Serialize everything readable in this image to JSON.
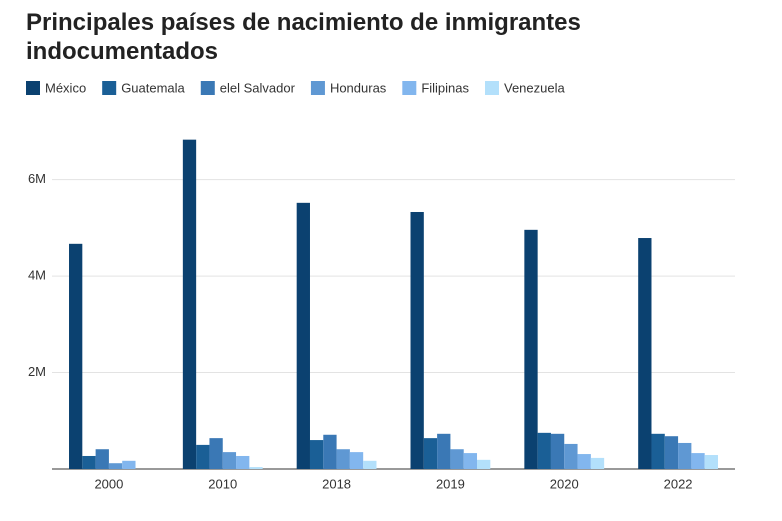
{
  "chart_data": {
    "type": "bar",
    "title": "Principales países de nacimiento de inmigrantes indocumentados",
    "categories": [
      "2000",
      "2010",
      "2018",
      "2019",
      "2020",
      "2022"
    ],
    "series": [
      {
        "name": "México",
        "color": "#0b4170",
        "values": [
          4670000,
          6830000,
          5520000,
          5330000,
          4960000,
          4790000
        ]
      },
      {
        "name": "Guatemala",
        "color": "#1a5f96",
        "values": [
          270000,
          500000,
          600000,
          640000,
          750000,
          730000
        ]
      },
      {
        "name": "elel Salvador",
        "color": "#3a78b5",
        "values": [
          410000,
          640000,
          710000,
          730000,
          730000,
          680000
        ]
      },
      {
        "name": "Honduras",
        "color": "#5f98d3",
        "values": [
          120000,
          350000,
          410000,
          410000,
          520000,
          540000
        ]
      },
      {
        "name": "Filipinas",
        "color": "#82b6ee",
        "values": [
          170000,
          270000,
          350000,
          330000,
          310000,
          330000
        ]
      },
      {
        "name": "Venezuela",
        "color": "#b3e0fb",
        "values": [
          0,
          40000,
          170000,
          190000,
          230000,
          290000
        ]
      }
    ],
    "ylim": [
      0,
      7300000
    ],
    "yticks": [
      {
        "value": 2000000,
        "label": "2M"
      },
      {
        "value": 4000000,
        "label": "4M"
      },
      {
        "value": 6000000,
        "label": "6M"
      }
    ],
    "grid": true
  }
}
